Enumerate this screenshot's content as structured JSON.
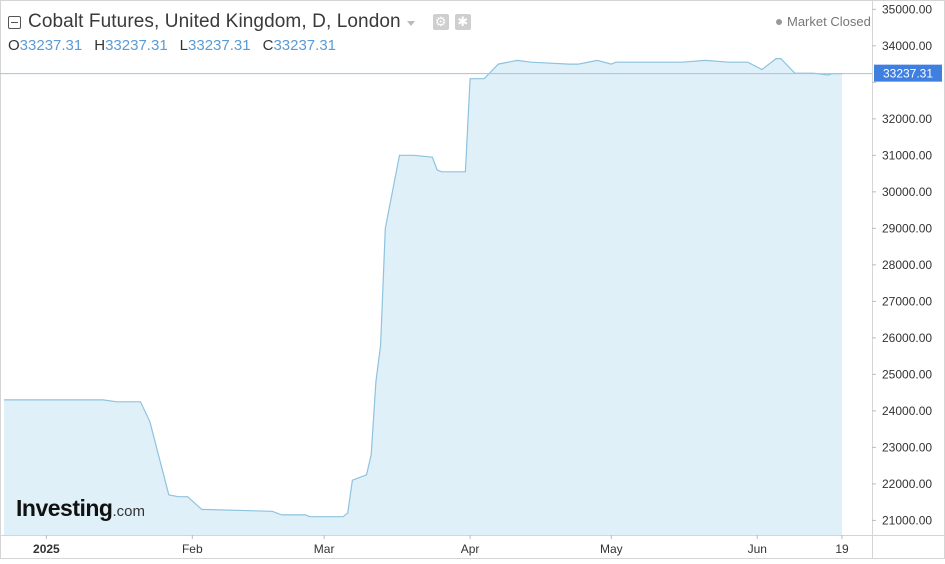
{
  "header": {
    "title": "Cobalt Futures, United Kingdom, D, London",
    "status": "Market Closed",
    "ohlc": [
      {
        "key": "O",
        "value": "33237.31"
      },
      {
        "key": "H",
        "value": "33237.31"
      },
      {
        "key": "L",
        "value": "33237.31"
      },
      {
        "key": "C",
        "value": "33237.31"
      }
    ]
  },
  "logo": {
    "main": "Investing",
    "suffix": ".com"
  },
  "colors": {
    "line": "#8ec3de",
    "fill": "#e0f0f9",
    "price_tag": "#3f7fe0",
    "axis_text": "#333333",
    "grid_border": "#d5d5d5"
  },
  "icons": [
    "collapse-icon",
    "chevron-down-icon",
    "settings-icon",
    "gear-icon",
    "status-dot-icon"
  ],
  "chart_data": {
    "type": "area",
    "title": "Cobalt Futures, United Kingdom, D, London",
    "grid": false,
    "ylim": [
      20600,
      35200
    ],
    "y_ticks": [
      "35000.00",
      "34000.00",
      "33000.00",
      "32000.00",
      "31000.00",
      "30000.00",
      "29000.00",
      "28000.00",
      "27000.00",
      "26000.00",
      "25000.00",
      "24000.00",
      "23000.00",
      "22000.00",
      "21000.00"
    ],
    "x_ticks": [
      {
        "label": "2025",
        "date": "2025-01-01",
        "bold": true
      },
      {
        "label": "Feb",
        "date": "2025-02-01",
        "bold": false
      },
      {
        "label": "Mar",
        "date": "2025-03-01",
        "bold": false
      },
      {
        "label": "Apr",
        "date": "2025-04-01",
        "bold": false
      },
      {
        "label": "May",
        "date": "2025-05-01",
        "bold": false
      },
      {
        "label": "Jun",
        "date": "2025-06-01",
        "bold": false
      },
      {
        "label": "19",
        "date": "2025-06-19",
        "bold": false
      }
    ],
    "last_value_label": "33237.31",
    "series": [
      {
        "x": [
          "2024-12-23",
          "2025-01-08",
          "2025-01-13",
          "2025-01-16",
          "2025-01-20",
          "2025-01-21",
          "2025-01-23",
          "2025-01-27",
          "2025-01-29",
          "2025-01-31",
          "2025-02-03",
          "2025-02-18",
          "2025-02-20",
          "2025-02-25",
          "2025-02-26",
          "2025-02-27",
          "2025-02-28",
          "2025-03-03",
          "2025-03-05",
          "2025-03-06",
          "2025-03-07",
          "2025-03-10",
          "2025-03-11",
          "2025-03-12",
          "2025-03-13",
          "2025-03-14",
          "2025-03-17",
          "2025-03-18",
          "2025-03-19",
          "2025-03-20",
          "2025-03-24",
          "2025-03-25",
          "2025-03-26",
          "2025-03-27",
          "2025-03-31",
          "2025-04-01",
          "2025-04-02",
          "2025-04-04",
          "2025-04-07",
          "2025-04-11",
          "2025-04-14",
          "2025-04-22",
          "2025-04-24",
          "2025-04-28",
          "2025-05-01",
          "2025-05-02",
          "2025-05-05",
          "2025-05-16",
          "2025-05-21",
          "2025-05-26",
          "2025-05-30",
          "2025-06-02",
          "2025-06-05",
          "2025-06-06",
          "2025-06-09",
          "2025-06-13",
          "2025-06-16",
          "2025-06-17",
          "2025-06-19"
        ],
        "y": [
          24300,
          24300,
          24300,
          24250,
          24250,
          24250,
          23700,
          21700,
          21650,
          21650,
          21300,
          21250,
          21150,
          21150,
          21100,
          21100,
          21100,
          21100,
          21100,
          21200,
          22100,
          22250,
          22800,
          24800,
          25800,
          29000,
          31000,
          31000,
          31000,
          31000,
          30950,
          30600,
          30550,
          30550,
          30550,
          33100,
          33100,
          33100,
          33500,
          33600,
          33550,
          33500,
          33500,
          33600,
          33500,
          33550,
          33550,
          33550,
          33600,
          33550,
          33550,
          33350,
          33650,
          33650,
          33250,
          33250,
          33200,
          33237.31,
          33237.31
        ]
      }
    ]
  }
}
